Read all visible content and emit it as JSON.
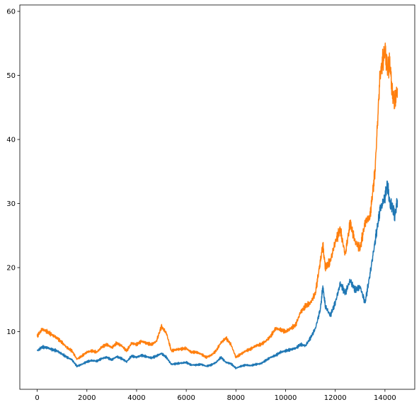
{
  "chart_data": {
    "type": "line",
    "title": "",
    "xlabel": "",
    "ylabel": "",
    "xlim": [
      -700,
      15200
    ],
    "ylim": [
      1,
      61
    ],
    "xticks": [
      0,
      2000,
      4000,
      6000,
      8000,
      10000,
      12000,
      14000
    ],
    "xtick_labels": [
      "0",
      "2000",
      "4000",
      "6000",
      "8000",
      "10000",
      "12000",
      "14000"
    ],
    "yticks": [
      10,
      20,
      30,
      40,
      50,
      60
    ],
    "ytick_labels": [
      "10",
      "20",
      "30",
      "40",
      "50",
      "60"
    ],
    "grid": false,
    "legend": "none",
    "series": [
      {
        "color": "#1f77b4",
        "x": [
          0,
          200,
          400,
          600,
          800,
          1000,
          1200,
          1400,
          1600,
          1800,
          2000,
          2200,
          2400,
          2600,
          2800,
          3000,
          3200,
          3400,
          3600,
          3800,
          4000,
          4200,
          4400,
          4600,
          4800,
          5000,
          5200,
          5400,
          5600,
          5800,
          6000,
          6200,
          6400,
          6600,
          6800,
          7000,
          7200,
          7400,
          7600,
          7800,
          8000,
          8200,
          8400,
          8600,
          8800,
          9000,
          9200,
          9400,
          9600,
          9800,
          10000,
          10200,
          10400,
          10600,
          10800,
          11000,
          11200,
          11400,
          11500,
          11600,
          11800,
          12000,
          12200,
          12400,
          12600,
          12800,
          13000,
          13200,
          13400,
          13600,
          13800,
          14000,
          14100,
          14200,
          14300,
          14400,
          14500
        ],
        "y": [
          7.0,
          7.6,
          7.5,
          7.2,
          7.0,
          6.5,
          6.0,
          5.6,
          4.6,
          4.9,
          5.3,
          5.5,
          5.4,
          5.8,
          6.0,
          5.6,
          6.1,
          5.8,
          5.3,
          6.2,
          6.0,
          6.3,
          6.1,
          5.9,
          6.2,
          6.6,
          6.0,
          4.9,
          5.0,
          5.1,
          5.2,
          4.8,
          4.8,
          4.9,
          4.6,
          4.8,
          5.2,
          6.0,
          5.2,
          5.0,
          4.3,
          4.6,
          4.8,
          4.7,
          4.9,
          5.0,
          5.5,
          6.0,
          6.3,
          6.8,
          7.0,
          7.2,
          7.4,
          8.0,
          7.8,
          9.0,
          10.5,
          13.5,
          17.0,
          14.0,
          12.5,
          14.5,
          17.5,
          16.0,
          18.0,
          16.5,
          17.0,
          14.5,
          19.0,
          24.0,
          29.0,
          31.0,
          33.0,
          30.0,
          29.5,
          28.0,
          30.5
        ]
      },
      {
        "color": "#ff7f0e",
        "x": [
          0,
          200,
          400,
          600,
          800,
          1000,
          1200,
          1400,
          1600,
          1800,
          2000,
          2200,
          2400,
          2600,
          2800,
          3000,
          3200,
          3400,
          3600,
          3800,
          4000,
          4200,
          4400,
          4600,
          4800,
          5000,
          5200,
          5400,
          5600,
          5800,
          6000,
          6200,
          6400,
          6600,
          6800,
          7000,
          7200,
          7400,
          7600,
          7800,
          8000,
          8200,
          8400,
          8600,
          8800,
          9000,
          9200,
          9400,
          9600,
          9800,
          10000,
          10200,
          10400,
          10600,
          10800,
          11000,
          11200,
          11400,
          11500,
          11600,
          11800,
          12000,
          12200,
          12400,
          12600,
          12800,
          13000,
          13200,
          13400,
          13600,
          13800,
          14000,
          14100,
          14200,
          14300,
          14400,
          14500
        ],
        "y": [
          9.3,
          10.4,
          10.0,
          9.5,
          9.0,
          8.3,
          7.5,
          7.0,
          5.7,
          6.2,
          6.8,
          7.0,
          6.8,
          7.6,
          8.0,
          7.5,
          8.2,
          7.8,
          7.0,
          8.2,
          8.0,
          8.5,
          8.2,
          8.0,
          8.5,
          10.8,
          9.8,
          7.0,
          7.2,
          7.3,
          7.4,
          6.8,
          6.8,
          6.5,
          6.0,
          6.3,
          7.0,
          8.3,
          9.0,
          8.0,
          6.0,
          6.5,
          7.0,
          7.3,
          7.8,
          8.0,
          8.5,
          9.3,
          10.5,
          10.3,
          10.0,
          10.5,
          11.0,
          13.0,
          14.0,
          14.5,
          16.0,
          21.0,
          23.5,
          20.0,
          21.0,
          24.0,
          26.0,
          22.0,
          27.0,
          24.0,
          23.0,
          27.0,
          28.0,
          35.0,
          50.0,
          54.0,
          51.0,
          52.0,
          47.0,
          46.0,
          48.0
        ]
      }
    ]
  }
}
